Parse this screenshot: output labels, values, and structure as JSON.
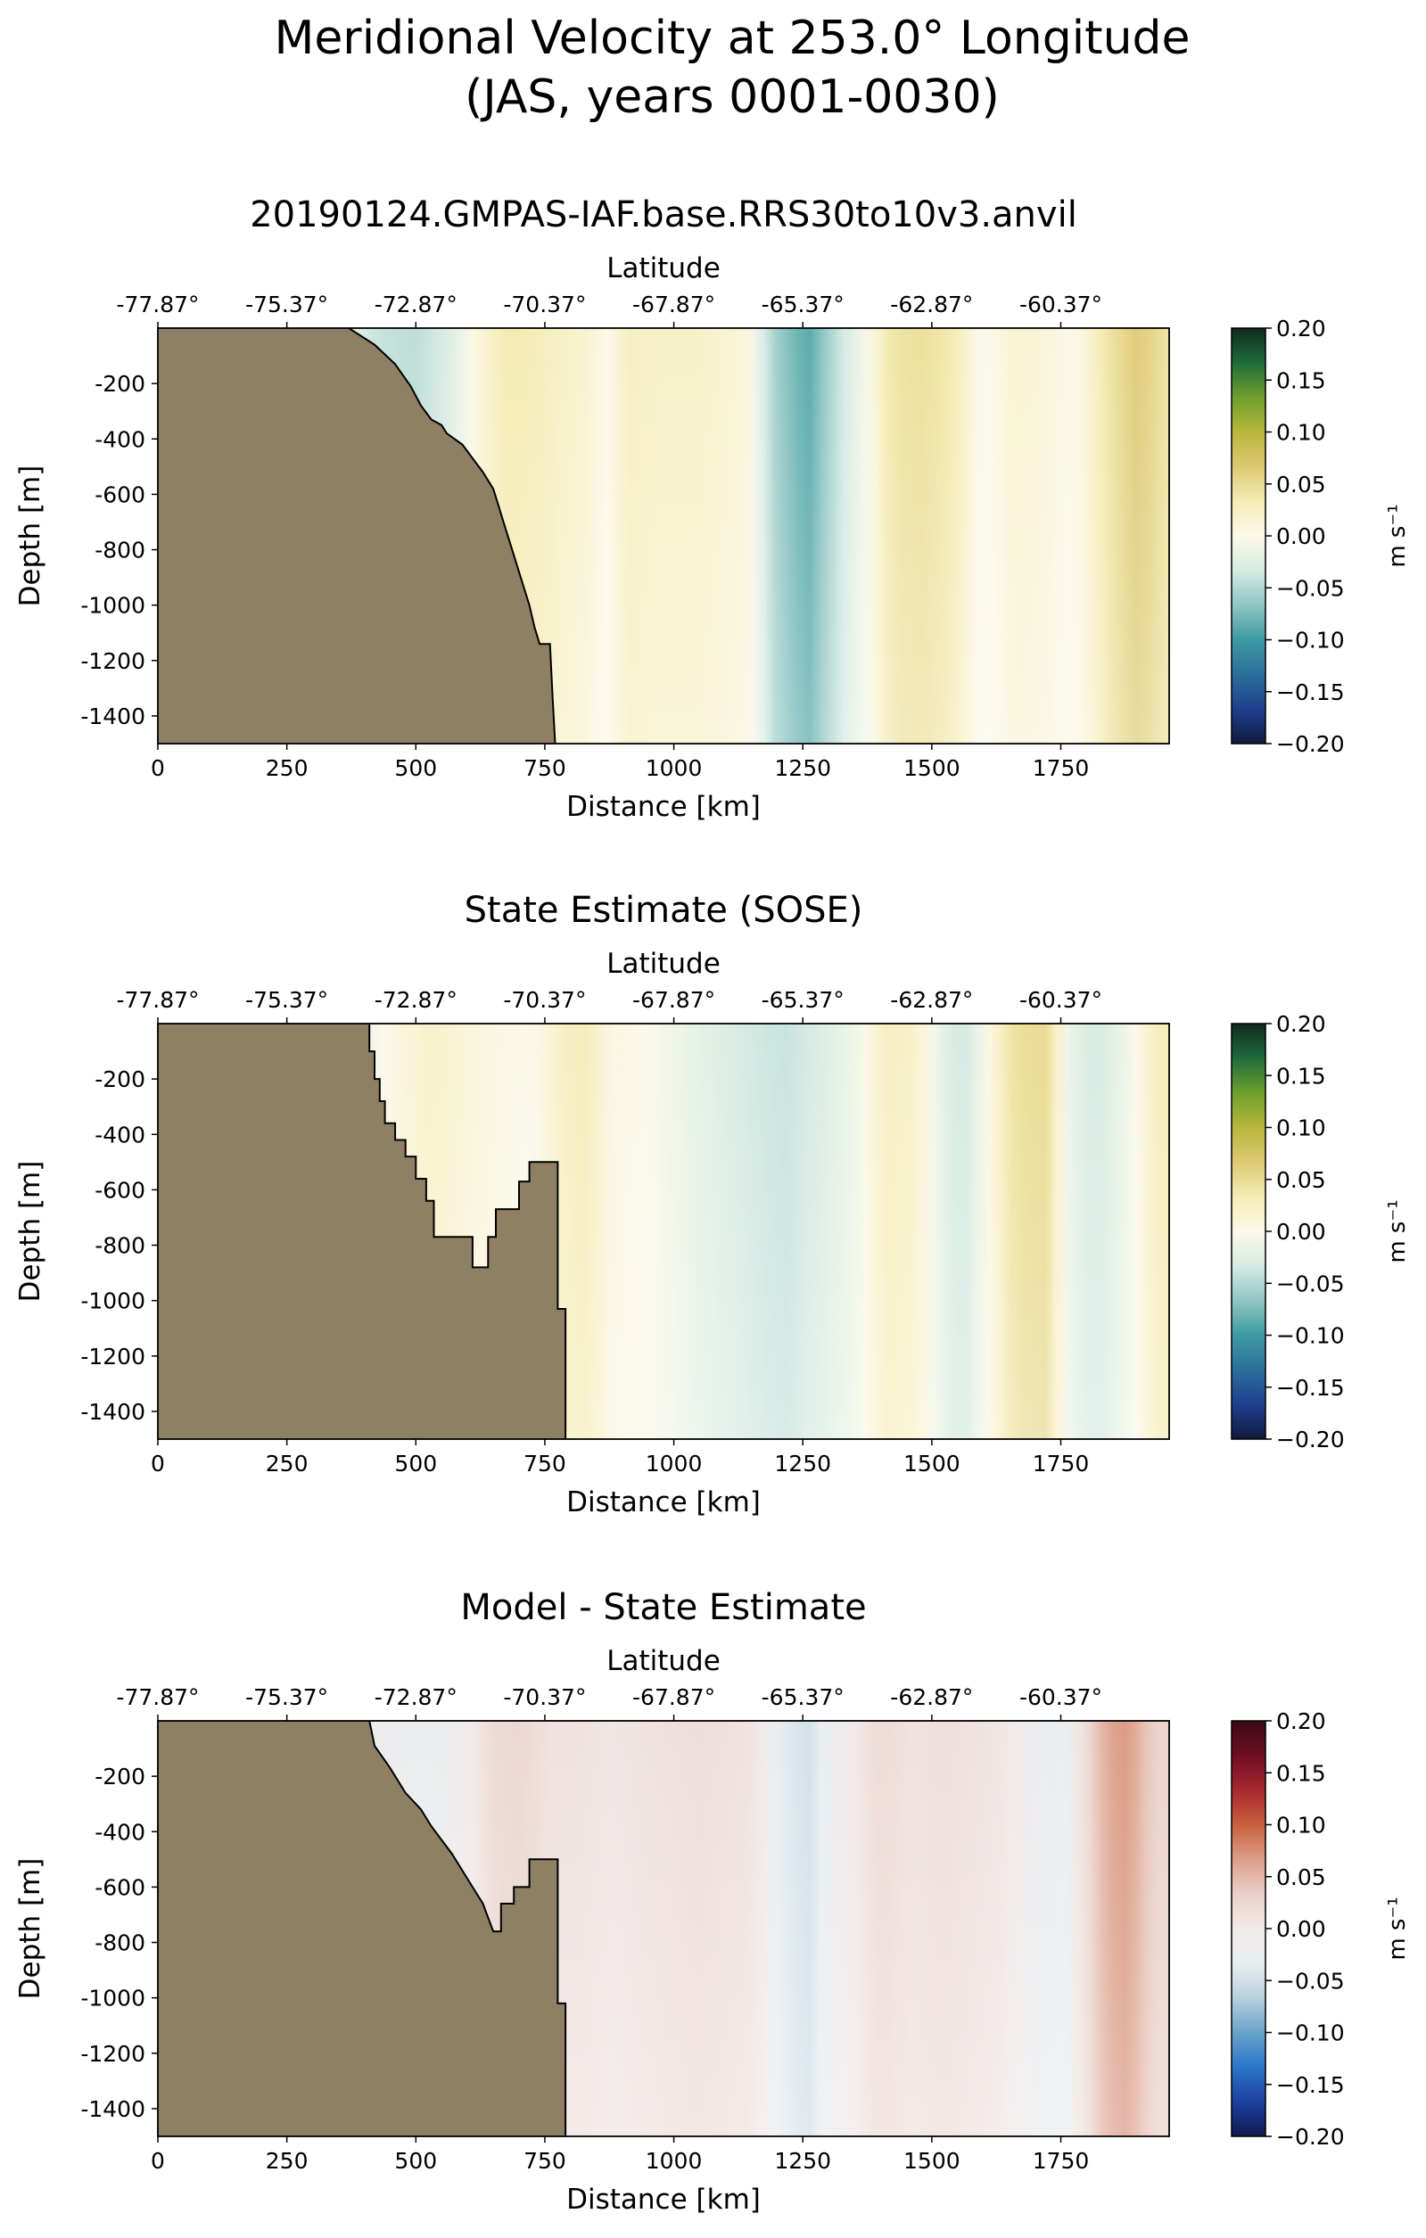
{
  "figure": {
    "suptitle_line1": "Meridional Velocity at 253.0° Longitude",
    "suptitle_line2": "(JAS, years 0001-0030)"
  },
  "colors": {
    "land": "#8f7f64",
    "velocity_cmap": [
      "#101a3c",
      "#1f3f8f",
      "#2b6f9a",
      "#3d9aa3",
      "#8fc6c2",
      "#d6ebe4",
      "#fbf9ea",
      "#f5ecb4",
      "#dec872",
      "#b9b63c",
      "#6f9f2c",
      "#1f6b3b",
      "#0f2a1e"
    ],
    "difference_cmap": [
      "#111a4f",
      "#1d3fa0",
      "#2a77c8",
      "#6aa3c9",
      "#b8d0de",
      "#e9eef1",
      "#f1eaea",
      "#ebd0c8",
      "#dc9e89",
      "#c8603f",
      "#a8272f",
      "#6e0d22",
      "#3b0a18"
    ]
  },
  "chart_data": [
    {
      "type": "heatmap",
      "title": "20190124.GMPAS-IAF.base.RRS30to10v3.anvil",
      "xlabel": "Distance [km]",
      "ylabel": "Depth [m]",
      "top_xlabel": "Latitude",
      "xlim": [
        0,
        1960
      ],
      "ylim": [
        -1500,
        0
      ],
      "xticks": [
        "0",
        "250",
        "500",
        "750",
        "1000",
        "1250",
        "1500",
        "1750"
      ],
      "yticks": [
        "-200",
        "-400",
        "-600",
        "-800",
        "-1000",
        "-1200",
        "-1400"
      ],
      "lat_ticks": [
        "-77.87°",
        "-75.37°",
        "-72.87°",
        "-70.37°",
        "-67.87°",
        "-65.37°",
        "-62.87°",
        "-60.37°"
      ],
      "colorbar": {
        "label": "m s⁻¹",
        "cmap": "velocity",
        "range": [
          -0.2,
          0.2
        ],
        "ticks": [
          "0.20",
          "0.15",
          "0.10",
          "0.05",
          "0.00",
          "−0.05",
          "−0.10",
          "−0.15",
          "−0.20"
        ]
      },
      "velocity_profile": {
        "distance_km": [
          370,
          420,
          500,
          560,
          620,
          680,
          740,
          790,
          830,
          870,
          910,
          960,
          1050,
          1140,
          1200,
          1260,
          1320,
          1380,
          1420,
          1480,
          1540,
          1600,
          1660,
          1720,
          1780,
          1840,
          1900,
          1960
        ],
        "velocity": [
          -0.015,
          -0.04,
          -0.045,
          -0.03,
          0.01,
          0.035,
          0.03,
          0.02,
          0.015,
          0.0,
          0.025,
          0.02,
          0.02,
          0.01,
          -0.06,
          -0.09,
          -0.04,
          0.0,
          0.04,
          0.045,
          0.035,
          -0.005,
          0.015,
          0.01,
          0.0,
          0.04,
          0.065,
          0.04
        ]
      },
      "bathymetry": {
        "distance_km": [
          370,
          420,
          460,
          490,
          510,
          530,
          550,
          560,
          590,
          610,
          630,
          650,
          660,
          670,
          680,
          690,
          700,
          710,
          720,
          730,
          740,
          760,
          765,
          770
        ],
        "depth_m": [
          0,
          -60,
          -130,
          -210,
          -280,
          -330,
          -350,
          -380,
          -420,
          -470,
          -520,
          -580,
          -640,
          -700,
          -760,
          -820,
          -880,
          -940,
          -1000,
          -1080,
          -1140,
          -1140,
          -1330,
          -1500
        ]
      }
    },
    {
      "type": "heatmap",
      "title": "State Estimate (SOSE)",
      "xlabel": "Distance [km]",
      "ylabel": "Depth [m]",
      "top_xlabel": "Latitude",
      "xlim": [
        0,
        1960
      ],
      "ylim": [
        -1500,
        0
      ],
      "xticks": [
        "0",
        "250",
        "500",
        "750",
        "1000",
        "1250",
        "1500",
        "1750"
      ],
      "yticks": [
        "-200",
        "-400",
        "-600",
        "-800",
        "-1000",
        "-1200",
        "-1400"
      ],
      "lat_ticks": [
        "-77.87°",
        "-75.37°",
        "-72.87°",
        "-70.37°",
        "-67.87°",
        "-65.37°",
        "-62.87°",
        "-60.37°"
      ],
      "colorbar": {
        "label": "m s⁻¹",
        "cmap": "velocity",
        "range": [
          -0.2,
          0.2
        ],
        "ticks": [
          "0.20",
          "0.15",
          "0.10",
          "0.05",
          "0.00",
          "−0.05",
          "−0.10",
          "−0.15",
          "−0.20"
        ]
      },
      "velocity_profile": {
        "distance_km": [
          400,
          460,
          530,
          600,
          660,
          730,
          790,
          830,
          880,
          950,
          1050,
          1150,
          1220,
          1280,
          1350,
          1410,
          1470,
          1520,
          1560,
          1600,
          1660,
          1720,
          1770,
          1820,
          1880,
          1940
        ],
        "velocity": [
          -0.01,
          0.005,
          0.02,
          0.01,
          0.005,
          0.0,
          0.025,
          0.03,
          0.005,
          0.0,
          -0.02,
          -0.035,
          -0.04,
          -0.03,
          -0.01,
          0.025,
          0.02,
          -0.02,
          -0.04,
          -0.005,
          0.045,
          0.05,
          -0.02,
          -0.035,
          -0.01,
          0.03
        ]
      },
      "bathymetry": {
        "distance_km": [
          410,
          410,
          420,
          420,
          430,
          430,
          440,
          440,
          460,
          460,
          480,
          480,
          500,
          500,
          520,
          520,
          535,
          535,
          610,
          610,
          640,
          640,
          655,
          655,
          700,
          700,
          720,
          720,
          750,
          750,
          775,
          775,
          790,
          790
        ],
        "depth_m": [
          0,
          -100,
          -100,
          -200,
          -200,
          -280,
          -280,
          -360,
          -360,
          -420,
          -420,
          -480,
          -480,
          -560,
          -560,
          -640,
          -640,
          -770,
          -770,
          -880,
          -880,
          -770,
          -770,
          -670,
          -670,
          -570,
          -570,
          -500,
          -500,
          -500,
          -500,
          -1030,
          -1030,
          -1500
        ]
      }
    },
    {
      "type": "heatmap",
      "title": "Model - State Estimate",
      "xlabel": "Distance [km]",
      "ylabel": "Depth [m]",
      "top_xlabel": "Latitude",
      "xlim": [
        0,
        1960
      ],
      "ylim": [
        -1500,
        0
      ],
      "xticks": [
        "0",
        "250",
        "500",
        "750",
        "1000",
        "1250",
        "1500",
        "1750"
      ],
      "yticks": [
        "-200",
        "-400",
        "-600",
        "-800",
        "-1000",
        "-1200",
        "-1400"
      ],
      "lat_ticks": [
        "-77.87°",
        "-75.37°",
        "-72.87°",
        "-70.37°",
        "-67.87°",
        "-65.37°",
        "-62.87°",
        "-60.37°"
      ],
      "colorbar": {
        "label": "m s⁻¹",
        "cmap": "difference",
        "range": [
          -0.2,
          0.2
        ],
        "ticks": [
          "0.20",
          "0.15",
          "0.10",
          "0.05",
          "0.00",
          "−0.05",
          "−0.10",
          "−0.15",
          "−0.20"
        ]
      },
      "velocity_profile": {
        "distance_km": [
          410,
          460,
          530,
          600,
          650,
          700,
          760,
          820,
          880,
          950,
          1050,
          1150,
          1210,
          1260,
          1320,
          1400,
          1460,
          1520,
          1580,
          1640,
          1700,
          1740,
          1790,
          1840,
          1880,
          1930
        ],
        "velocity": [
          -0.01,
          -0.02,
          -0.025,
          -0.005,
          0.02,
          0.025,
          0.01,
          0.01,
          0.005,
          0.01,
          0.015,
          0.01,
          -0.035,
          -0.05,
          -0.01,
          0.02,
          0.01,
          0.015,
          0.01,
          0.005,
          -0.02,
          -0.035,
          0.01,
          0.06,
          0.07,
          0.03
        ]
      },
      "bathymetry": {
        "distance_km": [
          410,
          420,
          450,
          480,
          510,
          530,
          550,
          570,
          590,
          610,
          630,
          640,
          650,
          665,
          665,
          690,
          690,
          720,
          720,
          740,
          740,
          775,
          775,
          790,
          790
        ],
        "depth_m": [
          0,
          -90,
          -170,
          -260,
          -320,
          -380,
          -430,
          -480,
          -540,
          -600,
          -660,
          -710,
          -760,
          -760,
          -660,
          -660,
          -600,
          -600,
          -500,
          -500,
          -500,
          -500,
          -1020,
          -1020,
          -1500
        ]
      }
    }
  ]
}
